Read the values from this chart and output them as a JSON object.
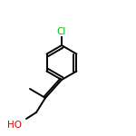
{
  "background_color": "#ffffff",
  "line_color": "#000000",
  "cl_color": "#00bb00",
  "ho_color": "#dd0000",
  "line_width": 1.4,
  "figsize": [
    1.5,
    1.5
  ],
  "dpi": 100,
  "annotations": [
    {
      "text": "Cl",
      "color": "#00bb00",
      "fontsize": 7.5
    },
    {
      "text": "HO",
      "color": "#dd0000",
      "fontsize": 7.5
    }
  ]
}
